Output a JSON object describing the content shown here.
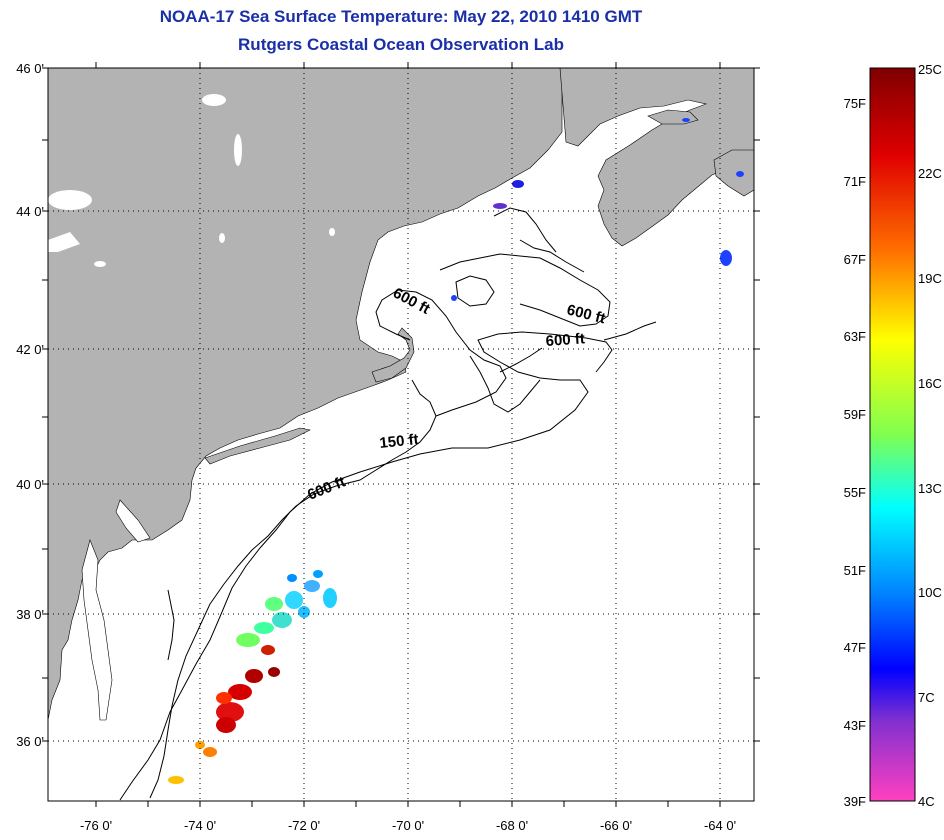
{
  "title": {
    "line1": "NOAA-17 Sea Surface Temperature:  May 22, 2010 1410 GMT",
    "line2": "Rutgers Coastal Ocean Observation Lab"
  },
  "map": {
    "lat_labels": [
      "46 0'",
      "44 0'",
      "42 0'",
      "40 0'",
      "38 0'",
      "36 0'"
    ],
    "lon_labels": [
      "-76 0'",
      "-74 0'",
      "-72 0'",
      "-70 0'",
      "-68 0'",
      "-66 0'",
      "-64 0'"
    ],
    "contour_labels": [
      "600 ft",
      "600 ft",
      "600 ft",
      "150 ft",
      "600 ft"
    ],
    "colors": {
      "land": "#b3b3b3",
      "ocean": "#ffffff",
      "contour": "#000000"
    }
  },
  "colorbar": {
    "fahrenheit": [
      "75F",
      "71F",
      "67F",
      "63F",
      "59F",
      "55F",
      "51F",
      "47F",
      "43F",
      "39F"
    ],
    "celsius": [
      "25C",
      "22C",
      "19C",
      "16C",
      "13C",
      "10C",
      "7C",
      "4C"
    ]
  }
}
